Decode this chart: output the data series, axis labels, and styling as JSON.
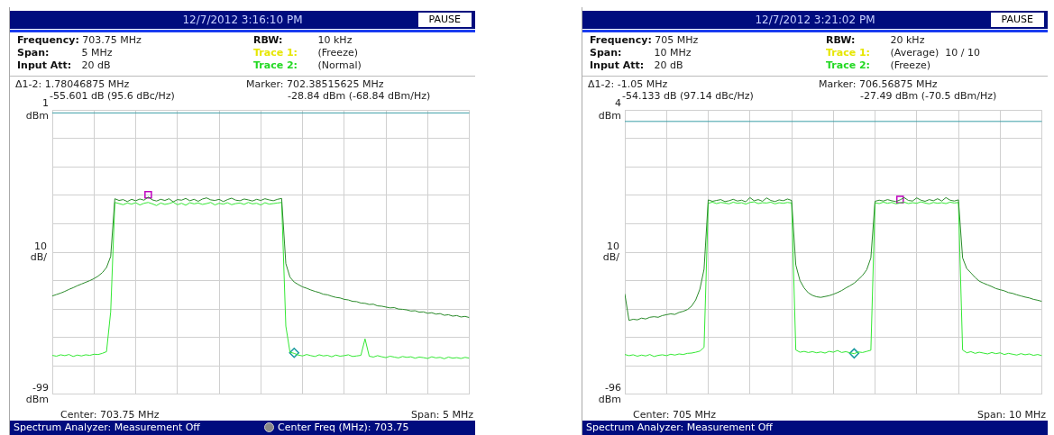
{
  "chart_data": [
    {
      "type": "line",
      "title": "12/7/2012 3:16:10 PM",
      "ylabel": "10 dB/",
      "tick_labels": "y",
      "grid": true,
      "ylim": [
        -99,
        1
      ],
      "yticks": [
        {
          "value": 1,
          "label": "1 dBm"
        },
        {
          "value": -9,
          "label": null
        },
        {
          "value": -19,
          "label": null
        },
        {
          "value": -29,
          "label": null
        },
        {
          "value": -39,
          "label": null
        },
        {
          "value": -49,
          "label": null
        },
        {
          "value": -59,
          "label": null
        },
        {
          "value": -69,
          "label": null
        },
        {
          "value": -79,
          "label": null
        },
        {
          "value": -89,
          "label": null
        },
        {
          "value": -99,
          "label": "-99 dBm"
        }
      ],
      "ref_lines": [
        {
          "axis": "y",
          "value": 0,
          "color": "#3a9ea6"
        }
      ],
      "annotations": [
        "PAUSE",
        "Frequency: 703.75 MHz",
        "Span: 5 MHz",
        "Input Att: 20 dB",
        "RBW: 10 kHz",
        "Trace 1: (Freeze)",
        "Trace 2: (Normal)",
        "Δ1-2: 1.78046875 MHz",
        "-55.601 dB (95.6 dBc/Hz)",
        "Marker: 702.38515625 MHz",
        "-28.84 dBm (-68.84 dBm/Hz)",
        "Center: 703.75 MHz",
        "Span: 5 MHz",
        "Spectrum Analyzer: Measurement Off",
        "Center Freq (MHz): 703.75"
      ],
      "categories": [
        null,
        null,
        null,
        null,
        null,
        null,
        null,
        null,
        null,
        null,
        null,
        null,
        null,
        null,
        null,
        null,
        null,
        null,
        null,
        null,
        null,
        null,
        null,
        null,
        null,
        null,
        null,
        null,
        null,
        null,
        null,
        null,
        null,
        null,
        null,
        null,
        null,
        null,
        null,
        null,
        null,
        null,
        null,
        null,
        null,
        null,
        null,
        null,
        null,
        null,
        null,
        null,
        null,
        null,
        null,
        null,
        null,
        null,
        null,
        null,
        null,
        null,
        null,
        null,
        null,
        null,
        null,
        null,
        null,
        null,
        null,
        null,
        null,
        null,
        null,
        null,
        null,
        null,
        null,
        null,
        null,
        null,
        null,
        null,
        null,
        null,
        null,
        null,
        null,
        null,
        null,
        null,
        null,
        null,
        null,
        null,
        null,
        null,
        null,
        null,
        null
      ],
      "series": [
        {
          "type": "line",
          "color": "#2a8a2a",
          "values": [
            -64.4,
            -63.9,
            -63.4,
            -62.8,
            -62.1,
            -61.5,
            -60.8,
            -60.2,
            -59.6,
            -59.0,
            -58.3,
            -57.4,
            -56.2,
            -54.4,
            -50.5,
            -30.2,
            -30.8,
            -30.5,
            -31.2,
            -30.4,
            -30.9,
            -30.3,
            -30.7,
            -29.6,
            -30.6,
            -31.0,
            -30.4,
            -30.8,
            -30.2,
            -31.3,
            -30.5,
            -30.7,
            -30.1,
            -30.9,
            -30.4,
            -31.1,
            -30.3,
            -29.9,
            -30.6,
            -30.8,
            -30.4,
            -31.2,
            -30.5,
            -30.0,
            -30.7,
            -30.9,
            -30.3,
            -30.6,
            -31.0,
            -30.4,
            -30.8,
            -30.2,
            -30.6,
            -30.9,
            -30.4,
            -30.1,
            -53.0,
            -57.8,
            -59.5,
            -60.4,
            -61.2,
            -61.7,
            -62.3,
            -62.8,
            -63.2,
            -63.8,
            -64.0,
            -64.5,
            -64.9,
            -65.1,
            -65.6,
            -65.8,
            -66.3,
            -66.4,
            -66.9,
            -67.0,
            -67.4,
            -67.3,
            -67.9,
            -68.0,
            -68.3,
            -68.6,
            -68.5,
            -69.0,
            -69.1,
            -69.3,
            -69.7,
            -69.6,
            -70.1,
            -70.0,
            -70.5,
            -70.3,
            -70.8,
            -70.6,
            -71.2,
            -71.0,
            -71.5,
            -71.3,
            -71.8,
            -71.6,
            -72.0
          ]
        },
        {
          "type": "line",
          "color": "#33e833",
          "values": [
            -85.3,
            -85.6,
            -85.1,
            -85.4,
            -85.0,
            -85.7,
            -85.2,
            -85.5,
            -85.1,
            -85.3,
            -84.9,
            -85.0,
            -84.6,
            -84.0,
            -70.0,
            -31.5,
            -31.9,
            -32.3,
            -31.7,
            -32.1,
            -31.6,
            -32.4,
            -31.8,
            -31.5,
            -32.0,
            -32.6,
            -31.7,
            -32.2,
            -31.9,
            -31.4,
            -32.3,
            -31.8,
            -32.5,
            -31.6,
            -32.0,
            -31.7,
            -32.2,
            -31.9,
            -31.5,
            -32.4,
            -31.8,
            -32.1,
            -31.6,
            -32.3,
            -31.9,
            -31.7,
            -32.2,
            -31.5,
            -32.0,
            -31.8,
            -32.4,
            -31.6,
            -32.1,
            -31.9,
            -31.7,
            -31.5,
            -75.0,
            -84.2,
            -84.6,
            -85.2,
            -85.5,
            -85.0,
            -85.4,
            -85.7,
            -85.1,
            -85.5,
            -85.3,
            -85.8,
            -85.2,
            -85.6,
            -85.4,
            -85.1,
            -85.7,
            -85.5,
            -85.3,
            -79.5,
            -85.6,
            -85.9,
            -85.4,
            -85.8,
            -86.1,
            -85.6,
            -85.9,
            -86.2,
            -85.7,
            -86.0,
            -85.8,
            -86.3,
            -85.9,
            -86.1,
            -86.4,
            -85.8,
            -86.2,
            -86.0,
            -86.5,
            -85.9,
            -86.3,
            -86.1,
            -86.4,
            -86.0,
            -86.3
          ]
        },
        {
          "type": "scatter",
          "marker": "square",
          "color": "#c000c0",
          "values": [
            null,
            null,
            null,
            null,
            null,
            null,
            null,
            null,
            null,
            null,
            null,
            null,
            null,
            null,
            null,
            null,
            null,
            null,
            null,
            null,
            null,
            null,
            null,
            -28.8,
            null,
            null,
            null,
            null,
            null,
            null,
            null,
            null,
            null,
            null,
            null,
            null,
            null,
            null,
            null,
            null,
            null,
            null,
            null,
            null,
            null,
            null,
            null,
            null,
            null,
            null,
            null,
            null,
            null,
            null,
            null,
            null,
            null,
            null,
            null,
            null,
            null,
            null,
            null,
            null,
            null,
            null,
            null,
            null,
            null,
            null,
            null,
            null,
            null,
            null,
            null,
            null,
            null,
            null,
            null,
            null,
            null,
            null,
            null,
            null,
            null,
            null,
            null,
            null,
            null,
            null,
            null,
            null,
            null,
            null,
            null,
            null,
            null,
            null,
            null,
            null,
            null
          ]
        },
        {
          "type": "scatter",
          "marker": "diamond",
          "color": "#1a9aa0",
          "values": [
            null,
            null,
            null,
            null,
            null,
            null,
            null,
            null,
            null,
            null,
            null,
            null,
            null,
            null,
            null,
            null,
            null,
            null,
            null,
            null,
            null,
            null,
            null,
            null,
            null,
            null,
            null,
            null,
            null,
            null,
            null,
            null,
            null,
            null,
            null,
            null,
            null,
            null,
            null,
            null,
            null,
            null,
            null,
            null,
            null,
            null,
            null,
            null,
            null,
            null,
            null,
            null,
            null,
            null,
            null,
            null,
            null,
            null,
            -84.4,
            null,
            null,
            null,
            null,
            null,
            null,
            null,
            null,
            null,
            null,
            null,
            null,
            null,
            null,
            null,
            null,
            null,
            null,
            null,
            null,
            null,
            null,
            null,
            null,
            null,
            null,
            null,
            null,
            null,
            null,
            null,
            null,
            null,
            null,
            null,
            null,
            null,
            null,
            null,
            null,
            null,
            null
          ]
        }
      ]
    },
    {
      "type": "line",
      "title": "12/7/2012 3:21:02 PM",
      "ylabel": "10 dB/",
      "tick_labels": "y",
      "grid": true,
      "ylim": [
        -96,
        4
      ],
      "yticks": [
        {
          "value": 4,
          "label": "4 dBm"
        },
        {
          "value": -6,
          "label": null
        },
        {
          "value": -16,
          "label": null
        },
        {
          "value": -26,
          "label": null
        },
        {
          "value": -36,
          "label": null
        },
        {
          "value": -46,
          "label": null
        },
        {
          "value": -56,
          "label": null
        },
        {
          "value": -66,
          "label": null
        },
        {
          "value": -76,
          "label": null
        },
        {
          "value": -86,
          "label": null
        },
        {
          "value": -96,
          "label": "-96 dBm"
        }
      ],
      "ref_lines": [
        {
          "axis": "y",
          "value": 0,
          "color": "#3a9ea6"
        }
      ],
      "annotations": [
        "PAUSE",
        "Frequency: 705 MHz",
        "Span: 10 MHz",
        "Input Att: 20 dB",
        "RBW: 20 kHz",
        "Trace 1: (Average)  10 / 10",
        "Trace 2: (Freeze)",
        "Δ1-2: -1.05 MHz",
        "-54.133 dB (97.14 dBc/Hz)",
        "Marker: 706.56875 MHz",
        "-27.49 dBm (-70.5 dBm/Hz)",
        "Center: 705 MHz",
        "Span: 10 MHz",
        "Spectrum Analyzer: Measurement Off"
      ],
      "categories": [
        null,
        null,
        null,
        null,
        null,
        null,
        null,
        null,
        null,
        null,
        null,
        null,
        null,
        null,
        null,
        null,
        null,
        null,
        null,
        null,
        null,
        null,
        null,
        null,
        null,
        null,
        null,
        null,
        null,
        null,
        null,
        null,
        null,
        null,
        null,
        null,
        null,
        null,
        null,
        null,
        null,
        null,
        null,
        null,
        null,
        null,
        null,
        null,
        null,
        null,
        null,
        null,
        null,
        null,
        null,
        null,
        null,
        null,
        null,
        null,
        null,
        null,
        null,
        null,
        null,
        null,
        null,
        null,
        null,
        null,
        null,
        null,
        null,
        null,
        null,
        null,
        null,
        null,
        null,
        null,
        null,
        null,
        null,
        null,
        null,
        null,
        null,
        null,
        null,
        null,
        null,
        null,
        null,
        null,
        null,
        null,
        null,
        null,
        null,
        null,
        null
      ],
      "series": [
        {
          "type": "line",
          "color": "#2a8a2a",
          "values": [
            -60.7,
            -70.0,
            -69.6,
            -69.8,
            -69.2,
            -69.5,
            -68.9,
            -68.7,
            -68.9,
            -68.3,
            -68.0,
            -67.7,
            -67.9,
            -67.2,
            -66.8,
            -66.2,
            -65.0,
            -62.8,
            -59.0,
            -52.0,
            -27.6,
            -28.1,
            -27.8,
            -27.5,
            -28.2,
            -27.9,
            -27.4,
            -28.0,
            -27.7,
            -28.3,
            -26.8,
            -27.9,
            -27.5,
            -28.1,
            -26.9,
            -27.8,
            -28.2,
            -27.6,
            -27.9,
            -27.3,
            -27.8,
            -50.5,
            -56.0,
            -58.6,
            -60.3,
            -61.2,
            -61.7,
            -61.9,
            -61.6,
            -61.3,
            -60.8,
            -60.2,
            -59.5,
            -58.6,
            -57.8,
            -56.9,
            -55.6,
            -54.2,
            -52.2,
            -48.0,
            -28.1,
            -27.7,
            -28.0,
            -27.5,
            -27.9,
            -28.2,
            -27.6,
            -26.8,
            -27.8,
            -28.0,
            -26.9,
            -27.7,
            -28.1,
            -27.5,
            -27.9,
            -27.2,
            -28.0,
            -26.8,
            -27.7,
            -28.0,
            -27.6,
            -48.0,
            -51.8,
            -53.3,
            -54.9,
            -56.2,
            -56.9,
            -57.5,
            -58.1,
            -58.8,
            -59.2,
            -59.6,
            -60.2,
            -60.5,
            -61.0,
            -61.4,
            -61.8,
            -62.1,
            -62.6,
            -62.9,
            -63.3
          ]
        },
        {
          "type": "line",
          "color": "#33e833",
          "values": [
            -82.0,
            -82.4,
            -82.1,
            -82.6,
            -82.2,
            -82.5,
            -82.0,
            -82.7,
            -82.3,
            -82.1,
            -82.4,
            -81.9,
            -82.2,
            -81.8,
            -82.0,
            -81.6,
            -81.5,
            -81.2,
            -80.8,
            -79.5,
            -28.8,
            -28.4,
            -28.9,
            -28.5,
            -28.7,
            -29.0,
            -28.4,
            -28.8,
            -28.6,
            -29.1,
            -28.5,
            -28.3,
            -28.9,
            -28.6,
            -28.7,
            -28.4,
            -29.0,
            -28.6,
            -28.8,
            -28.5,
            -28.7,
            -80.4,
            -81.2,
            -80.9,
            -81.3,
            -81.0,
            -81.4,
            -81.1,
            -81.5,
            -80.9,
            -81.2,
            -80.6,
            -81.3,
            -81.0,
            -81.4,
            -81.7,
            -81.1,
            -81.3,
            -80.9,
            -80.5,
            -28.6,
            -28.9,
            -28.4,
            -28.8,
            -28.5,
            -29.0,
            -28.7,
            -28.4,
            -28.9,
            -28.6,
            -28.8,
            -28.3,
            -28.7,
            -29.0,
            -28.5,
            -28.8,
            -28.6,
            -28.9,
            -28.4,
            -28.7,
            -28.5,
            -80.4,
            -81.4,
            -81.0,
            -81.6,
            -81.2,
            -81.5,
            -81.8,
            -81.3,
            -81.7,
            -81.4,
            -82.0,
            -81.6,
            -81.9,
            -82.2,
            -81.7,
            -82.1,
            -81.8,
            -82.3,
            -82.0,
            -82.4
          ]
        },
        {
          "type": "scatter",
          "marker": "square",
          "color": "#c000c0",
          "values": [
            null,
            null,
            null,
            null,
            null,
            null,
            null,
            null,
            null,
            null,
            null,
            null,
            null,
            null,
            null,
            null,
            null,
            null,
            null,
            null,
            null,
            null,
            null,
            null,
            null,
            null,
            null,
            null,
            null,
            null,
            null,
            null,
            null,
            null,
            null,
            null,
            null,
            null,
            null,
            null,
            null,
            null,
            null,
            null,
            null,
            null,
            null,
            null,
            null,
            null,
            null,
            null,
            null,
            null,
            null,
            null,
            null,
            null,
            null,
            null,
            null,
            null,
            null,
            null,
            null,
            null,
            -27.5,
            null,
            null,
            null,
            null,
            null,
            null,
            null,
            null,
            null,
            null,
            null,
            null,
            null,
            null,
            null,
            null,
            null,
            null,
            null,
            null,
            null,
            null,
            null,
            null,
            null,
            null,
            null,
            null,
            null,
            null,
            null,
            null,
            null,
            null
          ]
        },
        {
          "type": "scatter",
          "marker": "diamond",
          "color": "#1a9aa0",
          "values": [
            null,
            null,
            null,
            null,
            null,
            null,
            null,
            null,
            null,
            null,
            null,
            null,
            null,
            null,
            null,
            null,
            null,
            null,
            null,
            null,
            null,
            null,
            null,
            null,
            null,
            null,
            null,
            null,
            null,
            null,
            null,
            null,
            null,
            null,
            null,
            null,
            null,
            null,
            null,
            null,
            null,
            null,
            null,
            null,
            null,
            null,
            null,
            null,
            null,
            null,
            null,
            null,
            null,
            null,
            null,
            -81.6,
            null,
            null,
            null,
            null,
            null,
            null,
            null,
            null,
            null,
            null,
            null,
            null,
            null,
            null,
            null,
            null,
            null,
            null,
            null,
            null,
            null,
            null,
            null,
            null,
            null,
            null,
            null,
            null,
            null,
            null,
            null,
            null,
            null,
            null,
            null,
            null,
            null,
            null,
            null,
            null,
            null,
            null,
            null,
            null,
            null
          ]
        }
      ]
    }
  ]
}
